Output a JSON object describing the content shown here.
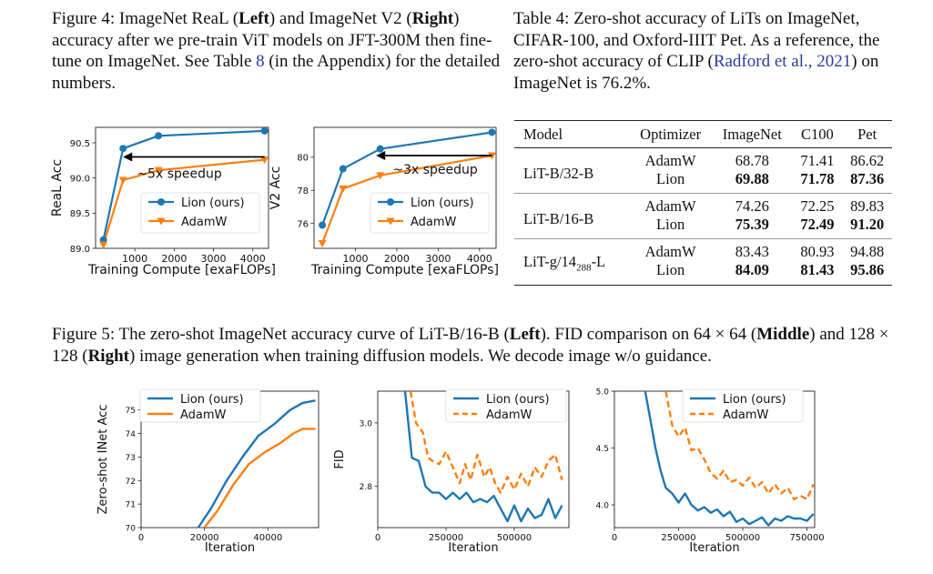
{
  "captions": {
    "fig4": {
      "prefix": "Figure 4: ImageNet ReaL (",
      "b1": "Left",
      "mid1": ") and ImageNet V2 (",
      "b2": "Right",
      "rest": ") accuracy after we pre-train ViT models on JFT-300M then fine-tune on ImageNet. See Table ",
      "ref": "8",
      "end": " (in the Appendix) for the detailed numbers."
    },
    "table4": {
      "text": "Table 4: Zero-shot accuracy of LiTs on ImageNet, CIFAR-100, and Oxford-IIIT Pet. As a reference, the zero-shot accuracy of CLIP (",
      "cite": "Radford et al., 2021",
      "end": ") on ImageNet is 76.2%."
    },
    "fig5": {
      "prefix": "Figure 5: The zero-shot ImageNet accuracy curve of LiT-B/16-B (",
      "b1": "Left",
      "mid1": "). FID comparison on 64 × 64 (",
      "b2": "Middle",
      "mid2": ") and 128 × 128 (",
      "b3": "Right",
      "end": ") image generation when training diffusion models. We decode image w/o guidance."
    }
  },
  "table": {
    "headers": [
      "Model",
      "Optimizer",
      "ImageNet",
      "C100",
      "Pet"
    ],
    "groups": [
      {
        "model": "LiT-B/32-B",
        "rows": [
          {
            "opt": "AdamW",
            "vals": [
              "68.78",
              "71.41",
              "86.62"
            ],
            "bold": false
          },
          {
            "opt": "Lion",
            "vals": [
              "69.88",
              "71.78",
              "87.36"
            ],
            "bold": true
          }
        ]
      },
      {
        "model": "LiT-B/16-B",
        "rows": [
          {
            "opt": "AdamW",
            "vals": [
              "74.26",
              "72.25",
              "89.83"
            ],
            "bold": false
          },
          {
            "opt": "Lion",
            "vals": [
              "75.39",
              "72.49",
              "91.20"
            ],
            "bold": true
          }
        ]
      },
      {
        "model": "LiT-g/14",
        "model_sub": "288",
        "model_suffix": "-L",
        "rows": [
          {
            "opt": "AdamW",
            "vals": [
              "83.43",
              "80.93",
              "94.88"
            ],
            "bold": false
          },
          {
            "opt": "Lion",
            "vals": [
              "84.09",
              "81.43",
              "95.86"
            ],
            "bold": true
          }
        ]
      }
    ]
  },
  "colors": {
    "lion": "#1f77b4",
    "adamw": "#ff7f0e"
  },
  "chart_data": [
    {
      "id": "real",
      "type": "line",
      "xlabel": "Training Compute [exaFLOPs]",
      "ylabel": "ReaL Acc",
      "xlim": [
        0,
        4400
      ],
      "ylim": [
        89.0,
        90.72
      ],
      "xticks": [
        1000,
        2000,
        3000,
        4000
      ],
      "xtick_labels": [
        "1000",
        "2000",
        "3000",
        "4000"
      ],
      "yticks": [
        89.0,
        89.5,
        90.0,
        90.5
      ],
      "ytick_labels": [
        "89.0",
        "89.5",
        "90.0",
        "90.5"
      ],
      "series": [
        {
          "name": "Lion (ours)",
          "marker": "circle",
          "x": [
            200,
            700,
            1600,
            4300
          ],
          "y": [
            89.12,
            90.42,
            90.6,
            90.67
          ]
        },
        {
          "name": "AdamW",
          "marker": "triangle-down",
          "x": [
            200,
            700,
            1600,
            4300
          ],
          "y": [
            89.05,
            89.97,
            90.11,
            90.26
          ]
        }
      ],
      "arrow": {
        "from": [
          4300,
          90.3
        ],
        "to": [
          700,
          90.3
        ]
      },
      "annotation": {
        "text": "~5x speedup",
        "x": 1050,
        "y": 90.0
      },
      "legend": "lower-right"
    },
    {
      "id": "v2",
      "type": "line",
      "xlabel": "Training Compute [exaFLOPs]",
      "ylabel": "V2 Acc",
      "xlim": [
        0,
        4400
      ],
      "ylim": [
        74.5,
        81.8
      ],
      "xticks": [
        1000,
        2000,
        3000,
        4000
      ],
      "xtick_labels": [
        "1000",
        "2000",
        "3000",
        "4000"
      ],
      "yticks": [
        76,
        78,
        80
      ],
      "ytick_labels": [
        "76",
        "78",
        "80"
      ],
      "series": [
        {
          "name": "Lion (ours)",
          "marker": "circle",
          "x": [
            200,
            700,
            1600,
            4300
          ],
          "y": [
            75.9,
            79.3,
            80.5,
            81.5
          ]
        },
        {
          "name": "AdamW",
          "marker": "triangle-down",
          "x": [
            200,
            700,
            1600,
            4300
          ],
          "y": [
            74.8,
            78.1,
            78.9,
            80.1
          ]
        }
      ],
      "arrow": {
        "from": [
          4300,
          80.1
        ],
        "to": [
          1500,
          80.1
        ]
      },
      "annotation": {
        "text": "~3x speedup",
        "x": 1900,
        "y": 79.0
      },
      "legend": "lower-right"
    },
    {
      "id": "zeroshot",
      "type": "line",
      "xlabel": "Iteration",
      "ylabel": "Zero-shot INet Acc",
      "xlim": [
        0,
        56000
      ],
      "ylim": [
        70,
        75.8
      ],
      "xticks": [
        0,
        20000,
        40000
      ],
      "xtick_labels": [
        "0",
        "20000",
        "40000"
      ],
      "yticks": [
        70,
        71,
        72,
        73,
        74,
        75
      ],
      "ytick_labels": [
        "70",
        "71",
        "72",
        "73",
        "74",
        "75"
      ],
      "series": [
        {
          "name": "Lion (ours)",
          "x": [
            18000,
            22000,
            27000,
            32000,
            37000,
            42000,
            47000,
            51000,
            55000
          ],
          "y": [
            70.0,
            70.8,
            72.0,
            73.0,
            73.9,
            74.4,
            75.0,
            75.3,
            75.4
          ]
        },
        {
          "name": "AdamW",
          "x": [
            20000,
            24000,
            29000,
            34000,
            39000,
            44000,
            48000,
            51000,
            55000
          ],
          "y": [
            70.0,
            70.7,
            71.8,
            72.7,
            73.2,
            73.6,
            74.0,
            74.2,
            74.2
          ]
        }
      ],
      "legend": "upper-left"
    },
    {
      "id": "fid64",
      "type": "line",
      "xlabel": "Iteration",
      "ylabel": "FID",
      "xlim": [
        0,
        700000
      ],
      "ylim": [
        2.67,
        3.1
      ],
      "xticks": [
        0,
        250000,
        500000
      ],
      "xtick_labels": [
        "0",
        "250000",
        "500000"
      ],
      "yticks": [
        2.8,
        3.0
      ],
      "ytick_labels": [
        "2.8",
        "3.0"
      ],
      "series": [
        {
          "name": "Lion (ours)",
          "style": "solid",
          "x": [
            100000,
            125000,
            150000,
            175000,
            200000,
            225000,
            250000,
            275000,
            300000,
            325000,
            350000,
            375000,
            400000,
            425000,
            450000,
            475000,
            500000,
            525000,
            550000,
            575000,
            600000,
            625000,
            650000,
            675000
          ],
          "y": [
            3.1,
            2.89,
            2.88,
            2.8,
            2.78,
            2.78,
            2.76,
            2.78,
            2.76,
            2.78,
            2.75,
            2.76,
            2.75,
            2.77,
            2.73,
            2.69,
            2.74,
            2.69,
            2.73,
            2.7,
            2.71,
            2.76,
            2.7,
            2.74
          ]
        },
        {
          "name": "AdamW",
          "style": "dashed",
          "x": [
            120000,
            140000,
            165000,
            185000,
            200000,
            225000,
            250000,
            275000,
            300000,
            320000,
            340000,
            365000,
            390000,
            410000,
            430000,
            450000,
            475000,
            500000,
            525000,
            550000,
            575000,
            600000,
            625000,
            650000,
            675000
          ],
          "y": [
            3.1,
            3.0,
            2.97,
            2.89,
            2.88,
            2.87,
            2.91,
            2.86,
            2.81,
            2.87,
            2.82,
            2.9,
            2.83,
            2.86,
            2.81,
            2.78,
            2.83,
            2.79,
            2.84,
            2.8,
            2.86,
            2.83,
            2.88,
            2.9,
            2.82
          ]
        }
      ],
      "legend": "upper-right"
    },
    {
      "id": "fid128",
      "type": "line",
      "xlabel": "Iteration",
      "ylabel": "",
      "xlim": [
        0,
        780000
      ],
      "ylim": [
        3.8,
        5.0
      ],
      "xticks": [
        0,
        250000,
        500000,
        750000
      ],
      "xtick_labels": [
        "0",
        "250000",
        "500000",
        "750000"
      ],
      "yticks": [
        4.0,
        4.5,
        5.0
      ],
      "ytick_labels": [
        "4.0",
        "4.5",
        "5.0"
      ],
      "series": [
        {
          "name": "Lion (ours)",
          "style": "solid",
          "x": [
            120000,
            140000,
            160000,
            180000,
            200000,
            225000,
            250000,
            275000,
            300000,
            325000,
            350000,
            375000,
            400000,
            425000,
            450000,
            475000,
            500000,
            525000,
            550000,
            575000,
            600000,
            625000,
            650000,
            675000,
            700000,
            725000,
            750000,
            775000
          ],
          "y": [
            5.0,
            4.75,
            4.5,
            4.3,
            4.15,
            4.1,
            4.02,
            4.1,
            4.0,
            3.95,
            3.98,
            3.93,
            3.96,
            3.9,
            3.94,
            3.85,
            3.88,
            3.83,
            3.86,
            3.89,
            3.82,
            3.88,
            3.86,
            3.9,
            3.88,
            3.88,
            3.86,
            3.92
          ]
        },
        {
          "name": "AdamW",
          "style": "dashed",
          "x": [
            200000,
            225000,
            250000,
            275000,
            300000,
            325000,
            350000,
            375000,
            400000,
            425000,
            450000,
            475000,
            500000,
            525000,
            550000,
            575000,
            600000,
            625000,
            650000,
            675000,
            700000,
            725000,
            750000,
            775000
          ],
          "y": [
            5.0,
            4.7,
            4.6,
            4.68,
            4.48,
            4.5,
            4.4,
            4.28,
            4.23,
            4.3,
            4.2,
            4.22,
            4.17,
            4.24,
            4.15,
            4.2,
            4.1,
            4.18,
            4.1,
            4.15,
            4.05,
            4.08,
            4.05,
            4.18
          ]
        }
      ],
      "legend": "upper-right"
    }
  ]
}
